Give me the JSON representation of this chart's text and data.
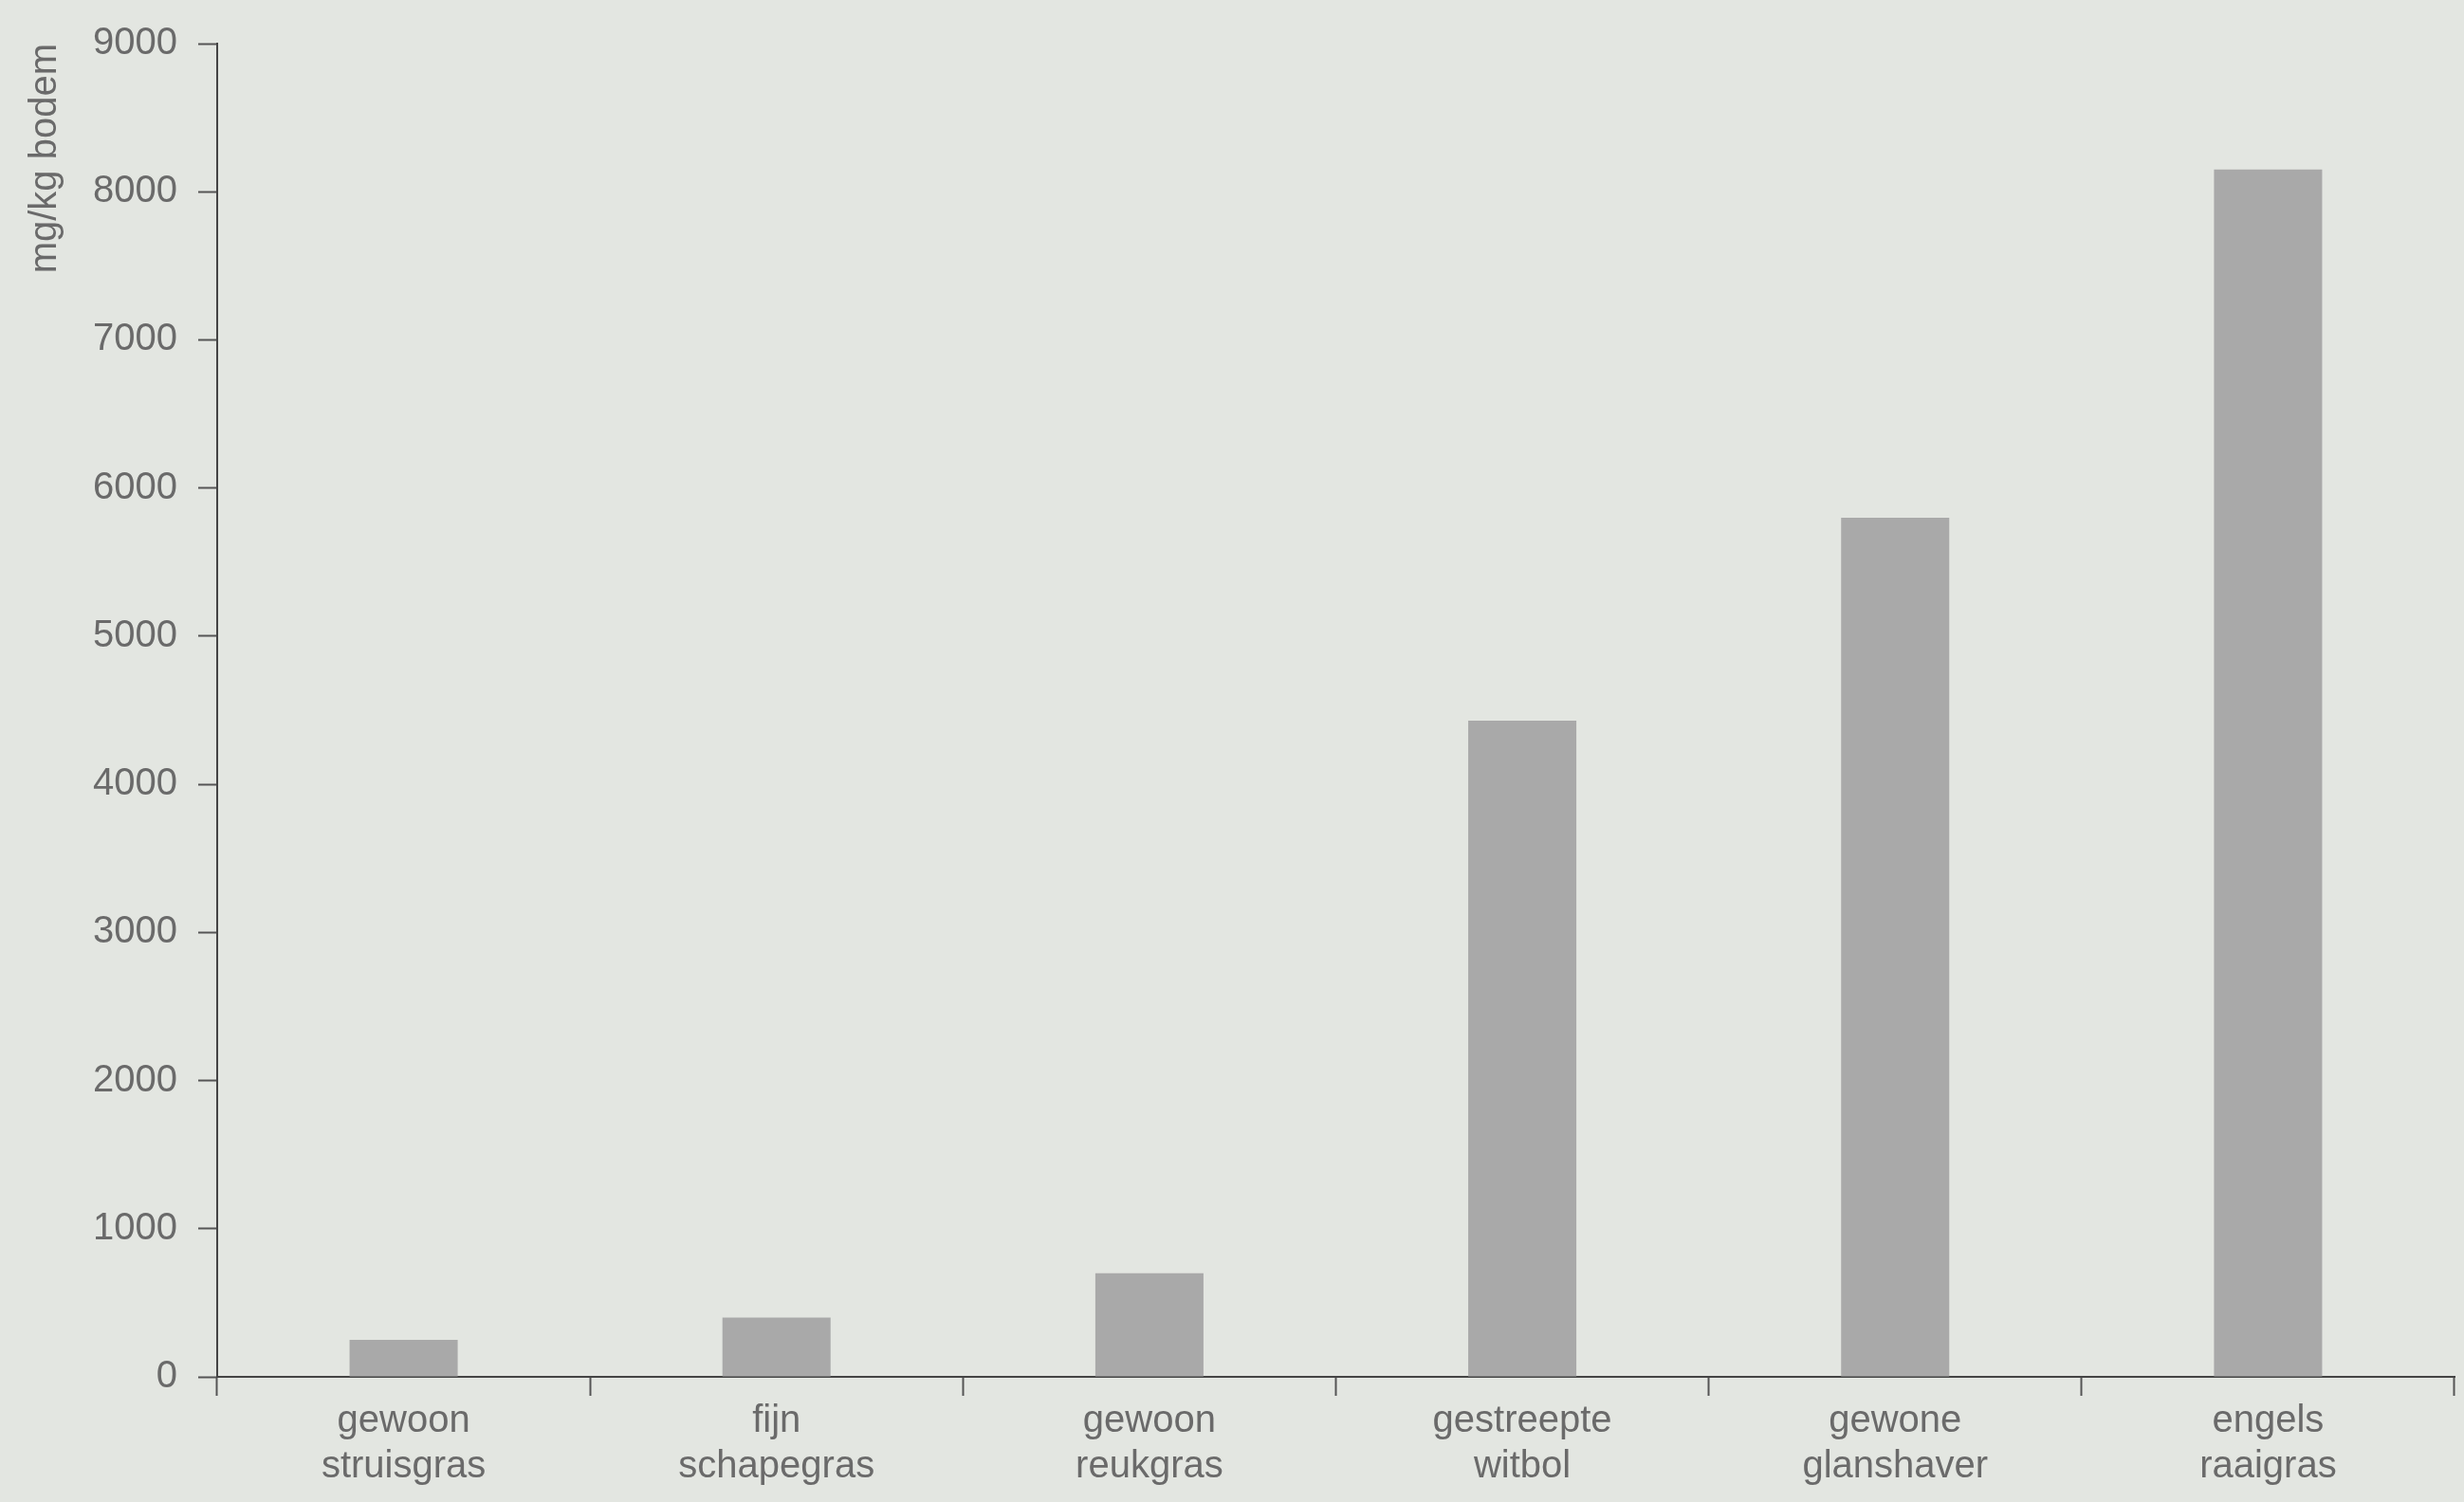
{
  "chart_data": {
    "type": "bar",
    "ylabel": "mg/kg bodem",
    "categories": [
      "gewoon struisgras",
      "fijn schapegras",
      "gewoon reukgras",
      "gestreepte witbol",
      "gewone glanshaver",
      "engels raaigras"
    ],
    "values": [
      250,
      400,
      700,
      4430,
      5800,
      8150
    ],
    "color": "#a9a9a9",
    "ylim": [
      0,
      9000
    ],
    "yticks": [
      0,
      1000,
      2000,
      3000,
      4000,
      5000,
      6000,
      7000,
      8000,
      9000
    ],
    "grid": false,
    "legend": false
  }
}
